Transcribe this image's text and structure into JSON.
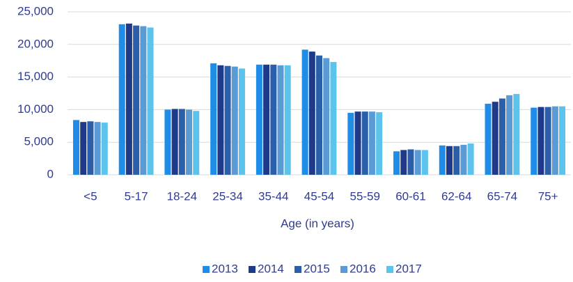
{
  "chart_data": {
    "type": "bar",
    "x_label": "Age (in years)",
    "categories": [
      "<5",
      "5-17",
      "18-24",
      "25-34",
      "35-44",
      "45-54",
      "55-59",
      "60-61",
      "62-64",
      "65-74",
      "75+"
    ],
    "series": [
      {
        "name": "2013",
        "color": "#1f8de8",
        "values": [
          8400,
          23100,
          10000,
          17100,
          16900,
          19200,
          9500,
          3600,
          4500,
          10900,
          10300
        ]
      },
      {
        "name": "2014",
        "color": "#1f3a8a",
        "values": [
          8100,
          23200,
          10100,
          16800,
          16900,
          18900,
          9700,
          3800,
          4400,
          11200,
          10400
        ]
      },
      {
        "name": "2015",
        "color": "#2c5fa9",
        "values": [
          8200,
          22900,
          10100,
          16700,
          16900,
          18300,
          9700,
          3900,
          4400,
          11700,
          10400
        ]
      },
      {
        "name": "2016",
        "color": "#5b9bd5",
        "values": [
          8100,
          22800,
          10000,
          16600,
          16800,
          17900,
          9700,
          3800,
          4600,
          12200,
          10500
        ]
      },
      {
        "name": "2017",
        "color": "#5cc4ec",
        "values": [
          8000,
          22600,
          9800,
          16300,
          16800,
          17300,
          9600,
          3800,
          4800,
          12400,
          10500
        ]
      }
    ],
    "ylim": [
      0,
      25000
    ],
    "yticks": [
      0,
      {
        "value": 5000,
        "label": "5,000"
      },
      {
        "value": 10000,
        "label": "10,000"
      },
      {
        "value": 15000,
        "label": "15,000"
      },
      {
        "value": 20000,
        "label": "20,000"
      },
      {
        "value": 25000,
        "label": "25,000"
      }
    ],
    "grid": true,
    "legend": "bottom"
  }
}
